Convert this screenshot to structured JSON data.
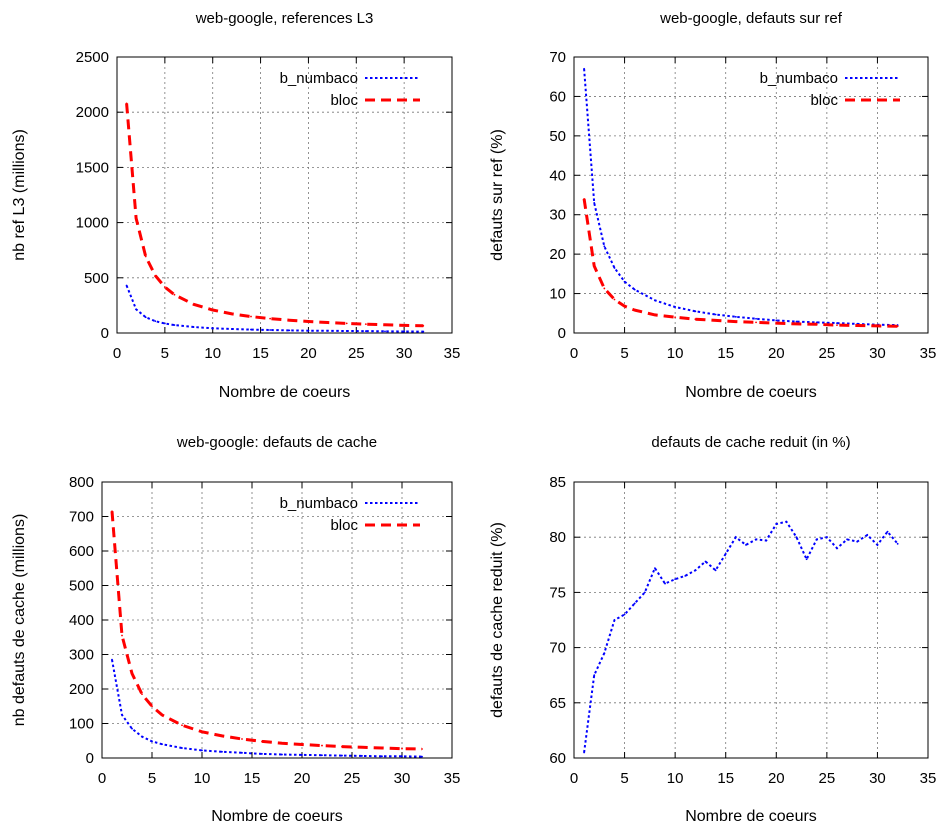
{
  "chart_data": [
    {
      "type": "line",
      "title": "web-google, references L3",
      "xlabel": "Nombre de coeurs",
      "ylabel": "nb ref L3 (millions)",
      "xlim": [
        0,
        35
      ],
      "ylim": [
        0,
        2500
      ],
      "xticks": [
        0,
        5,
        10,
        15,
        20,
        25,
        30,
        35
      ],
      "yticks": [
        0,
        500,
        1000,
        1500,
        2000,
        2500
      ],
      "grid": true,
      "legend_position": "top-right",
      "series": [
        {
          "name": "b_numbaco",
          "color": "#0000ff",
          "dash": "dotted",
          "x": [
            1,
            2,
            3,
            4,
            5,
            6,
            8,
            10,
            12,
            14,
            16,
            18,
            20,
            22,
            24,
            26,
            28,
            30,
            32
          ],
          "y": [
            430,
            215,
            143,
            107,
            86,
            72,
            54,
            43,
            36,
            31,
            27,
            24,
            21,
            20,
            18,
            17,
            15,
            14,
            13
          ]
        },
        {
          "name": "bloc",
          "color": "#ff0000",
          "dash": "dashed",
          "x": [
            1,
            2,
            3,
            4,
            5,
            6,
            8,
            10,
            12,
            14,
            16,
            18,
            20,
            22,
            24,
            26,
            28,
            30,
            32
          ],
          "y": [
            2080,
            1040,
            693,
            520,
            416,
            347,
            260,
            208,
            173,
            149,
            130,
            116,
            104,
            95,
            87,
            80,
            74,
            69,
            65
          ]
        }
      ]
    },
    {
      "type": "line",
      "title": "web-google, defauts sur ref",
      "xlabel": "Nombre de coeurs",
      "ylabel": "defauts sur ref (%)",
      "xlim": [
        0,
        35
      ],
      "ylim": [
        0,
        70
      ],
      "xticks": [
        0,
        5,
        10,
        15,
        20,
        25,
        30,
        35
      ],
      "yticks": [
        0,
        10,
        20,
        30,
        40,
        50,
        60,
        70
      ],
      "grid": true,
      "legend_position": "top-right",
      "series": [
        {
          "name": "b_numbaco",
          "color": "#0000ff",
          "dash": "dotted",
          "x": [
            1,
            2,
            3,
            4,
            5,
            6,
            8,
            10,
            12,
            14,
            16,
            18,
            20,
            22,
            24,
            26,
            28,
            30,
            32
          ],
          "y": [
            67,
            33,
            22,
            16.5,
            13,
            11,
            8.3,
            6.6,
            5.5,
            4.7,
            4.1,
            3.6,
            3.2,
            2.9,
            2.7,
            2.5,
            2.3,
            2.1,
            2.0
          ]
        },
        {
          "name": "bloc",
          "color": "#ff0000",
          "dash": "dashed",
          "x": [
            1,
            2,
            3,
            4,
            5,
            6,
            8,
            10,
            12,
            14,
            16,
            18,
            20,
            22,
            24,
            26,
            28,
            30,
            32
          ],
          "y": [
            34,
            17,
            11.3,
            8.5,
            6.8,
            5.8,
            4.6,
            4.0,
            3.5,
            3.2,
            2.9,
            2.7,
            2.5,
            2.3,
            2.2,
            2.0,
            1.9,
            1.8,
            1.7
          ]
        }
      ]
    },
    {
      "type": "line",
      "title": "web-google: defauts de cache",
      "xlabel": "Nombre de coeurs",
      "ylabel": "nb defauts de cache (millions)",
      "xlim": [
        0,
        35
      ],
      "ylim": [
        0,
        800
      ],
      "xticks": [
        0,
        5,
        10,
        15,
        20,
        25,
        30,
        35
      ],
      "yticks": [
        0,
        100,
        200,
        300,
        400,
        500,
        600,
        700,
        800
      ],
      "grid": true,
      "legend_position": "top-right",
      "series": [
        {
          "name": "b_numbaco",
          "color": "#0000ff",
          "dash": "dotted",
          "x": [
            1,
            2,
            3,
            4,
            5,
            6,
            8,
            10,
            12,
            14,
            16,
            18,
            20,
            22,
            24,
            26,
            28,
            30,
            32
          ],
          "y": [
            285,
            125,
            85,
            62,
            48,
            40,
            29,
            22,
            18,
            15,
            12,
            10,
            9,
            8,
            7,
            6,
            5,
            5,
            4
          ]
        },
        {
          "name": "bloc",
          "color": "#ff0000",
          "dash": "dashed",
          "x": [
            1,
            2,
            3,
            4,
            5,
            6,
            8,
            10,
            12,
            14,
            16,
            18,
            20,
            22,
            24,
            26,
            28,
            30,
            32
          ],
          "y": [
            715,
            355,
            245,
            185,
            150,
            125,
            95,
            76,
            64,
            55,
            48,
            43,
            39,
            36,
            33,
            31,
            29,
            27,
            26
          ]
        }
      ]
    },
    {
      "type": "line",
      "title": "defauts de cache reduit (in %)",
      "xlabel": "Nombre de coeurs",
      "ylabel": "defauts de cache reduit (%)",
      "xlim": [
        0,
        35
      ],
      "ylim": [
        60,
        85
      ],
      "xticks": [
        0,
        5,
        10,
        15,
        20,
        25,
        30,
        35
      ],
      "yticks": [
        60,
        65,
        70,
        75,
        80,
        85
      ],
      "grid": true,
      "legend_position": "none",
      "series": [
        {
          "name": "",
          "color": "#0000ff",
          "dash": "dotted",
          "x": [
            1,
            2,
            3,
            4,
            5,
            6,
            7,
            8,
            9,
            10,
            11,
            12,
            13,
            14,
            15,
            16,
            17,
            18,
            19,
            20,
            21,
            22,
            23,
            24,
            25,
            26,
            27,
            28,
            29,
            30,
            31,
            32
          ],
          "y": [
            60.5,
            67.5,
            69.5,
            72.5,
            73.0,
            74.0,
            75.0,
            77.2,
            75.8,
            76.2,
            76.5,
            77.0,
            77.8,
            77.0,
            78.5,
            80.0,
            79.3,
            79.8,
            79.7,
            81.2,
            81.4,
            80.0,
            78.0,
            79.8,
            80.0,
            79.0,
            79.8,
            79.6,
            80.2,
            79.3,
            80.5,
            79.4
          ]
        }
      ]
    }
  ]
}
